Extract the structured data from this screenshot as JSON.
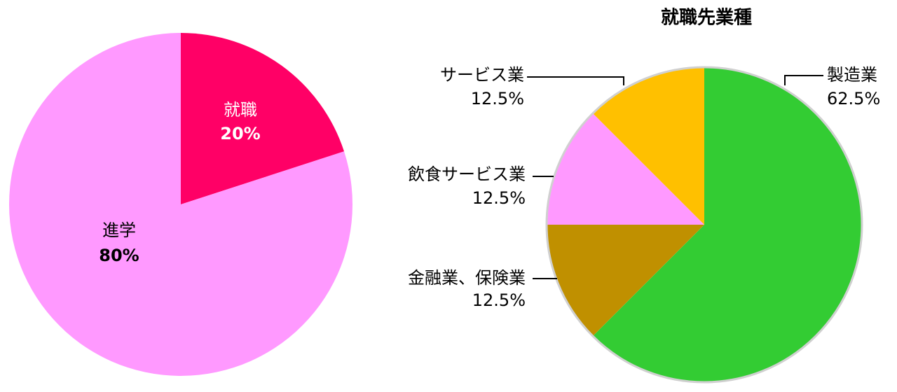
{
  "chart_data": [
    {
      "type": "pie",
      "categories": [
        "就職",
        "進学"
      ],
      "values": [
        20,
        80
      ],
      "value_labels": [
        "20%",
        "80%"
      ],
      "colors": [
        "#ff0066",
        "#ff99ff"
      ]
    },
    {
      "type": "pie",
      "title": "就職先業種",
      "categories": [
        "製造業",
        "金融業、保険業",
        "飲食サービス業",
        "サービス業"
      ],
      "values": [
        62.5,
        12.5,
        12.5,
        12.5
      ],
      "value_labels": [
        "62.5%",
        "12.5%",
        "12.5%",
        "12.5%"
      ],
      "colors": [
        "#33cc33",
        "#c09000",
        "#ff99ff",
        "#ffc000"
      ]
    }
  ]
}
